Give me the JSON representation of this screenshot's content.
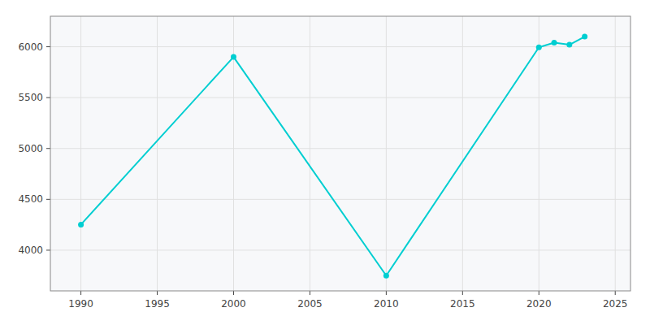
{
  "chart_data": {
    "type": "line",
    "x": [
      1990,
      2000,
      2010,
      2020,
      2021,
      2022,
      2023
    ],
    "values": [
      4252,
      5900,
      3750,
      5995,
      6040,
      6020,
      6100
    ],
    "color": "#00CED1",
    "marker": "circle",
    "xlim": [
      1988,
      2026
    ],
    "ylim": [
      3600,
      6300
    ],
    "xticks": [
      1990,
      1995,
      2000,
      2005,
      2010,
      2015,
      2020,
      2025
    ],
    "yticks": [
      4000,
      4500,
      5000,
      5500,
      6000
    ],
    "grid": true
  }
}
